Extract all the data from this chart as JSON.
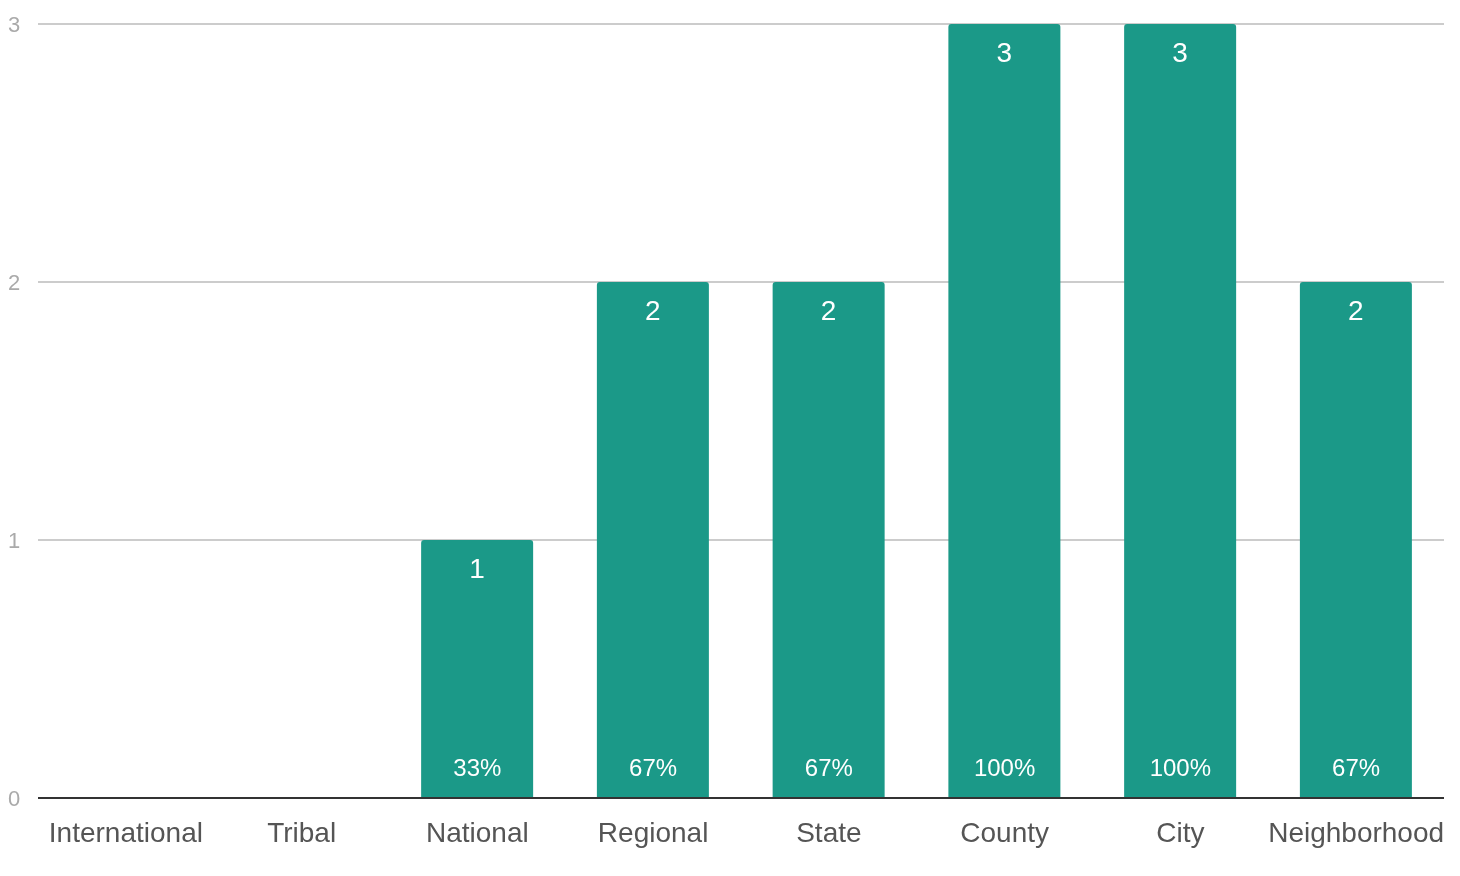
{
  "chart_data": {
    "type": "bar",
    "categories": [
      "International",
      "Tribal",
      "National",
      "Regional",
      "State",
      "County",
      "City",
      "Neighborhood"
    ],
    "values": [
      0,
      0,
      1,
      2,
      2,
      3,
      3,
      2
    ],
    "color": "#1b9988",
    "ylim": [
      0,
      3
    ],
    "yticks": [
      0,
      1,
      2,
      3
    ],
    "grid": "y",
    "value_labels": [
      null,
      null,
      "1",
      "2",
      "2",
      "3",
      "3",
      "2"
    ],
    "annotations": [
      {
        "text": "33%",
        "x": "National",
        "y": 0
      },
      {
        "text": "67%",
        "x": "Regional",
        "y": 0
      },
      {
        "text": "67%",
        "x": "State",
        "y": 0
      },
      {
        "text": "100%",
        "x": "County",
        "y": 0
      },
      {
        "text": "100%",
        "x": "City",
        "y": 0
      },
      {
        "text": "67%",
        "x": "Neighborhood",
        "y": 0
      }
    ]
  }
}
